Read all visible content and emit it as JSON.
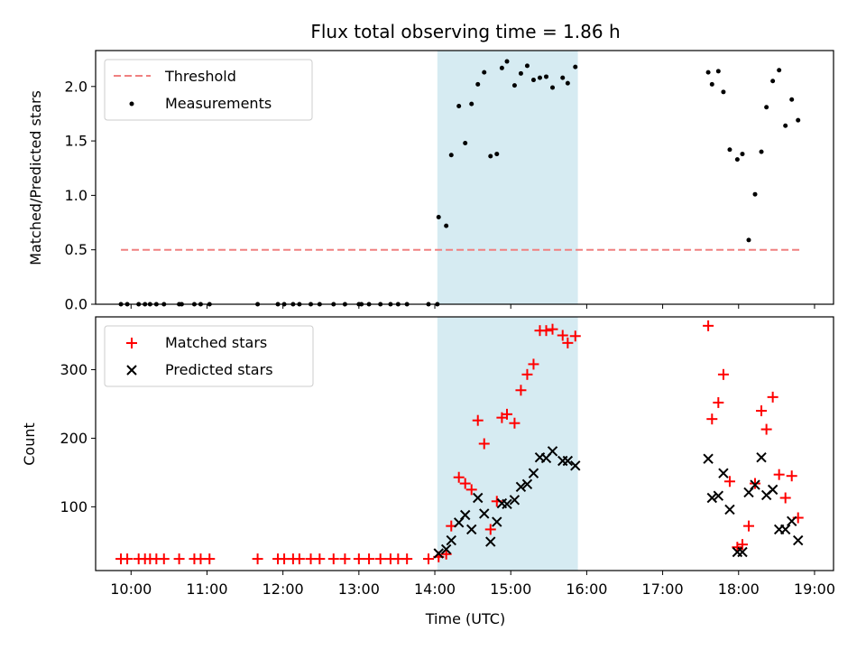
{
  "chart_data": [
    {
      "type": "scatter",
      "title": "Flux total observing time = 1.86 h",
      "xlabel": "",
      "ylabel": "Matched/Predicted stars",
      "xlim": [
        "09:32",
        "19:15"
      ],
      "ylim": [
        0,
        2.33
      ],
      "yticks": [
        "0.0",
        "0.5",
        "1.0",
        "1.5",
        "2.0"
      ],
      "legend_position": "top-left",
      "shaded_interval": {
        "start": "14:02",
        "end": "15:53",
        "color": "#add8e6"
      },
      "threshold": {
        "name": "Threshold",
        "value": 0.5,
        "x_start": "09:52",
        "x_end": "18:48",
        "color": "#f08080"
      },
      "series": [
        {
          "name": "Measurements",
          "color": "#000000",
          "points": [
            {
              "x": "09:52",
              "y": 0
            },
            {
              "x": "09:57",
              "y": 0
            },
            {
              "x": "10:06",
              "y": 0
            },
            {
              "x": "10:11",
              "y": 0
            },
            {
              "x": "10:15",
              "y": 0
            },
            {
              "x": "10:20",
              "y": 0
            },
            {
              "x": "10:26",
              "y": 0
            },
            {
              "x": "10:38",
              "y": 0
            },
            {
              "x": "10:40",
              "y": 0
            },
            {
              "x": "10:50",
              "y": 0
            },
            {
              "x": "10:55",
              "y": 0
            },
            {
              "x": "11:02",
              "y": 0
            },
            {
              "x": "11:40",
              "y": 0
            },
            {
              "x": "11:56",
              "y": 0
            },
            {
              "x": "12:01",
              "y": 0
            },
            {
              "x": "12:08",
              "y": 0
            },
            {
              "x": "12:13",
              "y": 0
            },
            {
              "x": "12:22",
              "y": 0
            },
            {
              "x": "12:29",
              "y": 0
            },
            {
              "x": "12:40",
              "y": 0
            },
            {
              "x": "12:49",
              "y": 0
            },
            {
              "x": "13:00",
              "y": 0
            },
            {
              "x": "13:02",
              "y": 0
            },
            {
              "x": "13:08",
              "y": 0
            },
            {
              "x": "13:17",
              "y": 0
            },
            {
              "x": "13:25",
              "y": 0
            },
            {
              "x": "13:31",
              "y": 0
            },
            {
              "x": "13:38",
              "y": 0
            },
            {
              "x": "13:55",
              "y": 0
            },
            {
              "x": "14:02",
              "y": 0
            },
            {
              "x": "14:03",
              "y": 0.8
            },
            {
              "x": "14:09",
              "y": 0.72
            },
            {
              "x": "14:13",
              "y": 1.37
            },
            {
              "x": "14:19",
              "y": 1.82
            },
            {
              "x": "14:24",
              "y": 1.48
            },
            {
              "x": "14:29",
              "y": 1.84
            },
            {
              "x": "14:34",
              "y": 2.02
            },
            {
              "x": "14:39",
              "y": 2.13
            },
            {
              "x": "14:44",
              "y": 1.36
            },
            {
              "x": "14:49",
              "y": 1.38
            },
            {
              "x": "14:53",
              "y": 2.17
            },
            {
              "x": "14:57",
              "y": 2.23
            },
            {
              "x": "15:03",
              "y": 2.01
            },
            {
              "x": "15:08",
              "y": 2.12
            },
            {
              "x": "15:13",
              "y": 2.19
            },
            {
              "x": "15:18",
              "y": 2.06
            },
            {
              "x": "15:23",
              "y": 2.08
            },
            {
              "x": "15:28",
              "y": 2.09
            },
            {
              "x": "15:33",
              "y": 1.99
            },
            {
              "x": "15:41",
              "y": 2.08
            },
            {
              "x": "15:45",
              "y": 2.03
            },
            {
              "x": "15:51",
              "y": 2.18
            },
            {
              "x": "17:36",
              "y": 2.13
            },
            {
              "x": "17:39",
              "y": 2.02
            },
            {
              "x": "17:44",
              "y": 2.14
            },
            {
              "x": "17:48",
              "y": 1.95
            },
            {
              "x": "17:53",
              "y": 1.42
            },
            {
              "x": "17:59",
              "y": 1.33
            },
            {
              "x": "18:03",
              "y": 1.38
            },
            {
              "x": "18:08",
              "y": 0.59
            },
            {
              "x": "18:13",
              "y": 1.01
            },
            {
              "x": "18:18",
              "y": 1.4
            },
            {
              "x": "18:22",
              "y": 1.81
            },
            {
              "x": "18:27",
              "y": 2.05
            },
            {
              "x": "18:32",
              "y": 2.15
            },
            {
              "x": "18:37",
              "y": 1.64
            },
            {
              "x": "18:42",
              "y": 1.88
            },
            {
              "x": "18:47",
              "y": 1.69
            }
          ]
        }
      ]
    },
    {
      "type": "scatter",
      "title": "",
      "xlabel": "Time (UTC)",
      "ylabel": "Count",
      "xlim": [
        "09:32",
        "19:15"
      ],
      "ylim": [
        7,
        377
      ],
      "yticks": [
        "100",
        "200",
        "300"
      ],
      "xticks": [
        "10:00",
        "11:00",
        "12:00",
        "13:00",
        "14:00",
        "15:00",
        "16:00",
        "17:00",
        "18:00",
        "19:00"
      ],
      "legend_position": "top-left",
      "shaded_interval": {
        "start": "14:02",
        "end": "15:53",
        "color": "#add8e6"
      },
      "series": [
        {
          "name": "Matched stars",
          "color": "#ff0000",
          "marker": "+",
          "points": [
            {
              "x": "09:52",
              "y": 24
            },
            {
              "x": "09:57",
              "y": 24
            },
            {
              "x": "10:06",
              "y": 24
            },
            {
              "x": "10:11",
              "y": 24
            },
            {
              "x": "10:15",
              "y": 24
            },
            {
              "x": "10:20",
              "y": 24
            },
            {
              "x": "10:26",
              "y": 24
            },
            {
              "x": "10:38",
              "y": 24
            },
            {
              "x": "10:50",
              "y": 24
            },
            {
              "x": "10:55",
              "y": 24
            },
            {
              "x": "11:02",
              "y": 24
            },
            {
              "x": "11:40",
              "y": 24
            },
            {
              "x": "11:56",
              "y": 24
            },
            {
              "x": "12:01",
              "y": 24
            },
            {
              "x": "12:08",
              "y": 24
            },
            {
              "x": "12:13",
              "y": 24
            },
            {
              "x": "12:22",
              "y": 24
            },
            {
              "x": "12:29",
              "y": 24
            },
            {
              "x": "12:40",
              "y": 24
            },
            {
              "x": "12:49",
              "y": 24
            },
            {
              "x": "13:00",
              "y": 24
            },
            {
              "x": "13:08",
              "y": 24
            },
            {
              "x": "13:17",
              "y": 24
            },
            {
              "x": "13:25",
              "y": 24
            },
            {
              "x": "13:31",
              "y": 24
            },
            {
              "x": "13:38",
              "y": 24
            },
            {
              "x": "13:55",
              "y": 24
            },
            {
              "x": "14:03",
              "y": 27
            },
            {
              "x": "14:09",
              "y": 31
            },
            {
              "x": "14:13",
              "y": 72
            },
            {
              "x": "14:19",
              "y": 143
            },
            {
              "x": "14:24",
              "y": 134
            },
            {
              "x": "14:29",
              "y": 125
            },
            {
              "x": "14:34",
              "y": 226
            },
            {
              "x": "14:39",
              "y": 192
            },
            {
              "x": "14:44",
              "y": 67
            },
            {
              "x": "14:49",
              "y": 108
            },
            {
              "x": "14:53",
              "y": 230
            },
            {
              "x": "14:57",
              "y": 235
            },
            {
              "x": "15:03",
              "y": 222
            },
            {
              "x": "15:08",
              "y": 270
            },
            {
              "x": "15:13",
              "y": 293
            },
            {
              "x": "15:18",
              "y": 308
            },
            {
              "x": "15:23",
              "y": 357
            },
            {
              "x": "15:28",
              "y": 357
            },
            {
              "x": "15:33",
              "y": 359
            },
            {
              "x": "15:41",
              "y": 350
            },
            {
              "x": "15:45",
              "y": 339
            },
            {
              "x": "15:51",
              "y": 349
            },
            {
              "x": "17:36",
              "y": 364
            },
            {
              "x": "17:39",
              "y": 228
            },
            {
              "x": "17:44",
              "y": 252
            },
            {
              "x": "17:48",
              "y": 293
            },
            {
              "x": "17:53",
              "y": 137
            },
            {
              "x": "17:59",
              "y": 41
            },
            {
              "x": "18:03",
              "y": 45
            },
            {
              "x": "18:08",
              "y": 72
            },
            {
              "x": "18:13",
              "y": 134
            },
            {
              "x": "18:18",
              "y": 240
            },
            {
              "x": "18:22",
              "y": 213
            },
            {
              "x": "18:27",
              "y": 260
            },
            {
              "x": "18:32",
              "y": 147
            },
            {
              "x": "18:37",
              "y": 113
            },
            {
              "x": "18:42",
              "y": 145
            },
            {
              "x": "18:47",
              "y": 84
            }
          ]
        },
        {
          "name": "Predicted stars",
          "color": "#000000",
          "marker": "x",
          "points": [
            {
              "x": "14:03",
              "y": 32
            },
            {
              "x": "14:09",
              "y": 38
            },
            {
              "x": "14:13",
              "y": 51
            },
            {
              "x": "14:19",
              "y": 77
            },
            {
              "x": "14:24",
              "y": 88
            },
            {
              "x": "14:29",
              "y": 67
            },
            {
              "x": "14:34",
              "y": 113
            },
            {
              "x": "14:39",
              "y": 90
            },
            {
              "x": "14:44",
              "y": 49
            },
            {
              "x": "14:49",
              "y": 78
            },
            {
              "x": "14:53",
              "y": 105
            },
            {
              "x": "14:57",
              "y": 104
            },
            {
              "x": "15:03",
              "y": 110
            },
            {
              "x": "15:08",
              "y": 129
            },
            {
              "x": "15:13",
              "y": 133
            },
            {
              "x": "15:18",
              "y": 149
            },
            {
              "x": "15:23",
              "y": 172
            },
            {
              "x": "15:28",
              "y": 171
            },
            {
              "x": "15:33",
              "y": 181
            },
            {
              "x": "15:41",
              "y": 167
            },
            {
              "x": "15:45",
              "y": 167
            },
            {
              "x": "15:51",
              "y": 160
            },
            {
              "x": "17:36",
              "y": 170
            },
            {
              "x": "17:39",
              "y": 113
            },
            {
              "x": "17:44",
              "y": 116
            },
            {
              "x": "17:48",
              "y": 149
            },
            {
              "x": "17:53",
              "y": 96
            },
            {
              "x": "17:59",
              "y": 34
            },
            {
              "x": "18:03",
              "y": 34
            },
            {
              "x": "18:08",
              "y": 121
            },
            {
              "x": "18:13",
              "y": 132
            },
            {
              "x": "18:18",
              "y": 172
            },
            {
              "x": "18:22",
              "y": 117
            },
            {
              "x": "18:27",
              "y": 125
            },
            {
              "x": "18:32",
              "y": 67
            },
            {
              "x": "18:37",
              "y": 67
            },
            {
              "x": "18:42",
              "y": 79
            },
            {
              "x": "18:47",
              "y": 51
            }
          ]
        }
      ]
    }
  ]
}
